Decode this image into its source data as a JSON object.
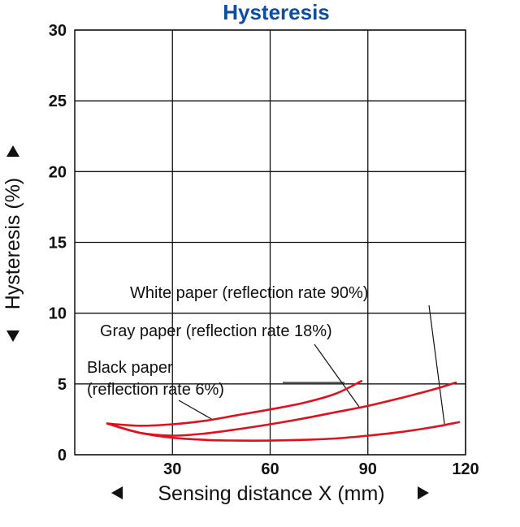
{
  "chart_data": {
    "type": "line",
    "title": "Hysteresis",
    "xlabel": "Sensing distance X (mm)",
    "ylabel": "Hysteresis (%)",
    "xlim": [
      0,
      120
    ],
    "ylim": [
      0,
      30
    ],
    "xticks": [
      "30",
      "60",
      "90",
      "120"
    ],
    "yticks": [
      "0",
      "5",
      "10",
      "15",
      "20",
      "25",
      "30"
    ],
    "grid": true,
    "colors": {
      "title": "#0b4ea2",
      "curve": "#e0101e",
      "axes": "#111111"
    },
    "series": [
      {
        "name": "Black paper\n(reflection rate 6%)",
        "label_lines": [
          "Black paper",
          "(reflection rate 6%)"
        ],
        "x": [
          10,
          20,
          30,
          40,
          50,
          60,
          70,
          80,
          88
        ],
        "y": [
          2.2,
          2.05,
          2.15,
          2.4,
          2.8,
          3.2,
          3.65,
          4.3,
          5.2
        ]
      },
      {
        "name": "Gray paper (reflection rate 18%)",
        "label_lines": [
          "Gray paper (reflection rate 18%)"
        ],
        "x": [
          10,
          20,
          30,
          40,
          50,
          60,
          70,
          80,
          90,
          100,
          110,
          117
        ],
        "y": [
          2.2,
          1.55,
          1.35,
          1.5,
          1.8,
          2.15,
          2.55,
          3.0,
          3.45,
          4.0,
          4.6,
          5.1
        ]
      },
      {
        "name": "White paper (reflection rate 90%)",
        "label_lines": [
          "White paper (reflection rate 90%)"
        ],
        "x": [
          10,
          20,
          30,
          40,
          50,
          60,
          70,
          80,
          90,
          100,
          110,
          118
        ],
        "y": [
          2.2,
          1.55,
          1.2,
          1.05,
          1.0,
          1.0,
          1.05,
          1.15,
          1.35,
          1.6,
          1.95,
          2.3
        ]
      }
    ]
  }
}
